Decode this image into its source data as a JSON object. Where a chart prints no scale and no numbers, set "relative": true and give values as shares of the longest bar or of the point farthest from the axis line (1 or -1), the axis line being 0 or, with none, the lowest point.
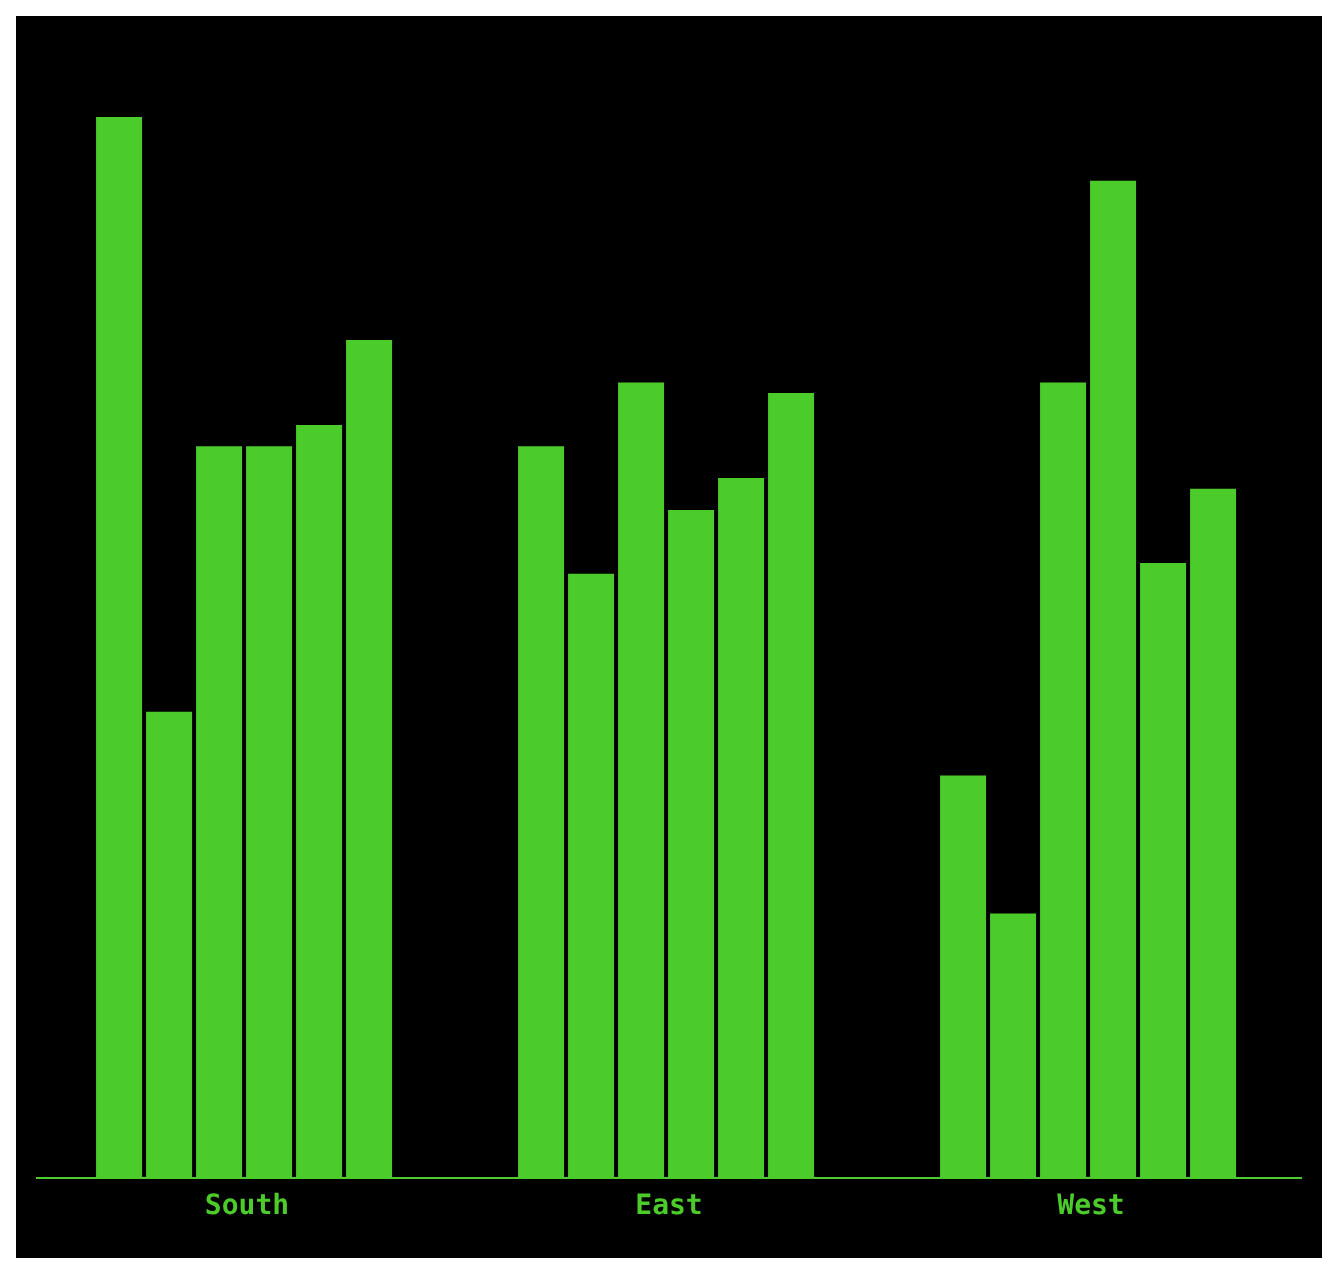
{
  "chart_data": {
    "type": "bar",
    "relative": true,
    "categories": [
      "South",
      "East",
      "West"
    ],
    "series": [
      {
        "color": "#4ccc2a",
        "values": [
          1,
          0.69,
          0.38
        ]
      },
      {
        "color": "#4ccc2a",
        "values": [
          0.44,
          0.57,
          0.25
        ]
      },
      {
        "color": "#4ccc2a",
        "values": [
          0.69,
          0.75,
          0.75
        ]
      },
      {
        "color": "#4ccc2a",
        "values": [
          0.69,
          0.63,
          0.94
        ]
      },
      {
        "color": "#4ccc2a",
        "values": [
          0.71,
          0.66,
          0.58
        ]
      },
      {
        "color": "#4ccc2a",
        "values": [
          0.79,
          0.74,
          0.65
        ]
      }
    ]
  }
}
